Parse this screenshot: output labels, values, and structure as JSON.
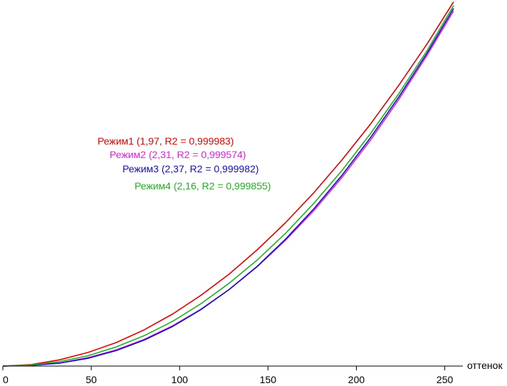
{
  "chart_data": {
    "type": "line",
    "title": "",
    "xlabel": "оттенок",
    "ylabel": "",
    "xlim": [
      0,
      255
    ],
    "ylim": [
      0,
      1
    ],
    "grid": false,
    "legend_position": "center-left, inline annotations",
    "x_ticks": [
      "0",
      "50",
      "100",
      "150",
      "200",
      "250"
    ],
    "x": [
      0,
      16,
      32,
      48,
      64,
      80,
      96,
      112,
      128,
      144,
      160,
      176,
      192,
      208,
      224,
      240,
      255
    ],
    "series": [
      {
        "name": "Режим1 (1,97, R2 = 0,999983)",
        "color": "#e00000",
        "values": [
          0,
          0.004,
          0.017,
          0.037,
          0.064,
          0.099,
          0.142,
          0.193,
          0.251,
          0.318,
          0.392,
          0.474,
          0.564,
          0.661,
          0.767,
          0.88,
          0.995
        ]
      },
      {
        "name": "Режим2 (2,31, R2 = 0,999574)",
        "color": "#e020e0",
        "values": [
          0,
          0.002,
          0.008,
          0.023,
          0.044,
          0.073,
          0.11,
          0.155,
          0.209,
          0.272,
          0.344,
          0.425,
          0.516,
          0.617,
          0.728,
          0.849,
          0.97
        ]
      },
      {
        "name": "Режим3 (2,37, R2 = 0,999982)",
        "color": "#1010c0",
        "values": [
          0,
          0.002,
          0.008,
          0.021,
          0.042,
          0.071,
          0.108,
          0.154,
          0.209,
          0.273,
          0.347,
          0.43,
          0.522,
          0.624,
          0.735,
          0.855,
          0.977
        ]
      },
      {
        "name": "Режим4 (2,16, R2 = 0,999855)",
        "color": "#20b020",
        "values": [
          0,
          0.003,
          0.012,
          0.028,
          0.052,
          0.083,
          0.122,
          0.17,
          0.226,
          0.29,
          0.363,
          0.445,
          0.535,
          0.635,
          0.744,
          0.862,
          0.985
        ]
      }
    ]
  }
}
